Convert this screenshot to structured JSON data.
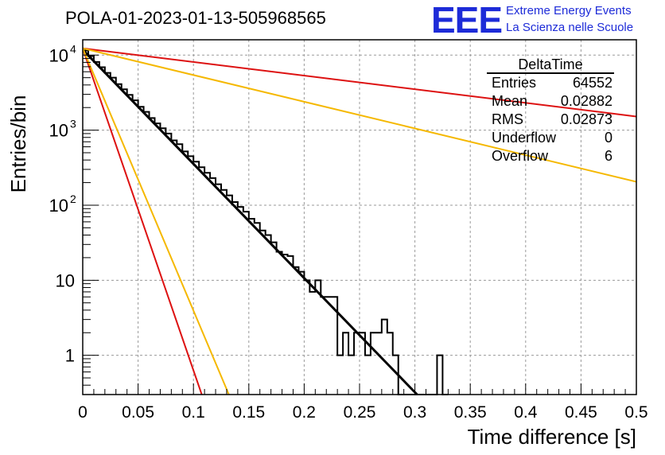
{
  "header": {
    "title": "POLA-01-2023-01-13-505968565"
  },
  "logo": {
    "mark": "EEE",
    "line1": "Extreme Energy Events",
    "line2": "La Scienza nelle Scuole",
    "color": "#1d2bd8"
  },
  "stats_box": {
    "name": "DeltaTime",
    "rows": [
      {
        "label": "Entries",
        "value": "64552"
      },
      {
        "label": "Mean",
        "value": "0.02882"
      },
      {
        "label": "RMS",
        "value": "0.02873"
      },
      {
        "label": "Underflow",
        "value": "0"
      },
      {
        "label": "Overflow",
        "value": "6"
      }
    ]
  },
  "chart_data": {
    "type": "line",
    "xlabel": "Time difference [s]",
    "ylabel": "Entries/bin",
    "xlim": [
      0,
      0.5
    ],
    "ylim": [
      0.3,
      16000
    ],
    "yscale": "log",
    "grid": true,
    "x_ticks": [
      "0",
      "0.05",
      "0.1",
      "0.15",
      "0.2",
      "0.25",
      "0.3",
      "0.35",
      "0.4",
      "0.45",
      "0.5"
    ],
    "y_ticks": [
      {
        "value": 1,
        "label": "1"
      },
      {
        "value": 10,
        "label": "10"
      },
      {
        "value": 100,
        "label": "10",
        "exp": "2"
      },
      {
        "value": 1000,
        "label": "10",
        "exp": "3"
      },
      {
        "value": 10000,
        "label": "10",
        "exp": "4"
      }
    ],
    "histogram": {
      "bin_width": 0.005,
      "color": "#000000",
      "bins": [
        [
          0.0,
          11500
        ],
        [
          0.005,
          9700
        ],
        [
          0.01,
          8100
        ],
        [
          0.015,
          6900
        ],
        [
          0.02,
          5800
        ],
        [
          0.025,
          5000
        ],
        [
          0.03,
          4100
        ],
        [
          0.035,
          3500
        ],
        [
          0.04,
          2950
        ],
        [
          0.045,
          2500
        ],
        [
          0.05,
          2050
        ],
        [
          0.055,
          1750
        ],
        [
          0.06,
          1450
        ],
        [
          0.065,
          1230
        ],
        [
          0.07,
          1060
        ],
        [
          0.075,
          900
        ],
        [
          0.08,
          730
        ],
        [
          0.085,
          650
        ],
        [
          0.09,
          520
        ],
        [
          0.095,
          450
        ],
        [
          0.1,
          380
        ],
        [
          0.105,
          320
        ],
        [
          0.11,
          270
        ],
        [
          0.115,
          230
        ],
        [
          0.12,
          190
        ],
        [
          0.125,
          160
        ],
        [
          0.13,
          135
        ],
        [
          0.135,
          110
        ],
        [
          0.14,
          95
        ],
        [
          0.145,
          82
        ],
        [
          0.15,
          66
        ],
        [
          0.155,
          58
        ],
        [
          0.16,
          46
        ],
        [
          0.165,
          40
        ],
        [
          0.17,
          32
        ],
        [
          0.175,
          24
        ],
        [
          0.18,
          22
        ],
        [
          0.185,
          21
        ],
        [
          0.19,
          15
        ],
        [
          0.195,
          13
        ],
        [
          0.2,
          10
        ],
        [
          0.205,
          7
        ],
        [
          0.21,
          10
        ],
        [
          0.215,
          6
        ],
        [
          0.22,
          6
        ],
        [
          0.225,
          6
        ],
        [
          0.23,
          1
        ],
        [
          0.235,
          2
        ],
        [
          0.24,
          1
        ],
        [
          0.245,
          2
        ],
        [
          0.25,
          2
        ],
        [
          0.255,
          1
        ],
        [
          0.26,
          2
        ],
        [
          0.265,
          2
        ],
        [
          0.27,
          3
        ],
        [
          0.275,
          2
        ],
        [
          0.28,
          1
        ],
        [
          0.285,
          0
        ],
        [
          0.29,
          0
        ],
        [
          0.295,
          0
        ],
        [
          0.3,
          0
        ],
        [
          0.305,
          0
        ],
        [
          0.31,
          0
        ],
        [
          0.315,
          0
        ],
        [
          0.32,
          1
        ],
        [
          0.325,
          0
        ]
      ]
    },
    "series": [
      {
        "points": [
          [
            0,
            11800
          ],
          [
            0.302,
            0.3
          ]
        ],
        "color": "#000000"
      },
      {
        "points": [
          [
            0,
            12300
          ],
          [
            0.5,
            1520
          ]
        ],
        "color": "#dd1111"
      },
      {
        "points": [
          [
            0,
            12300
          ],
          [
            0.5,
            205
          ]
        ],
        "color": "#f5b800"
      },
      {
        "points": [
          [
            0,
            12300
          ],
          [
            0.1075,
            0.3
          ]
        ],
        "color": "#dd1111"
      },
      {
        "points": [
          [
            0,
            12300
          ],
          [
            0.132,
            0.3
          ]
        ],
        "color": "#f5b800"
      }
    ]
  }
}
